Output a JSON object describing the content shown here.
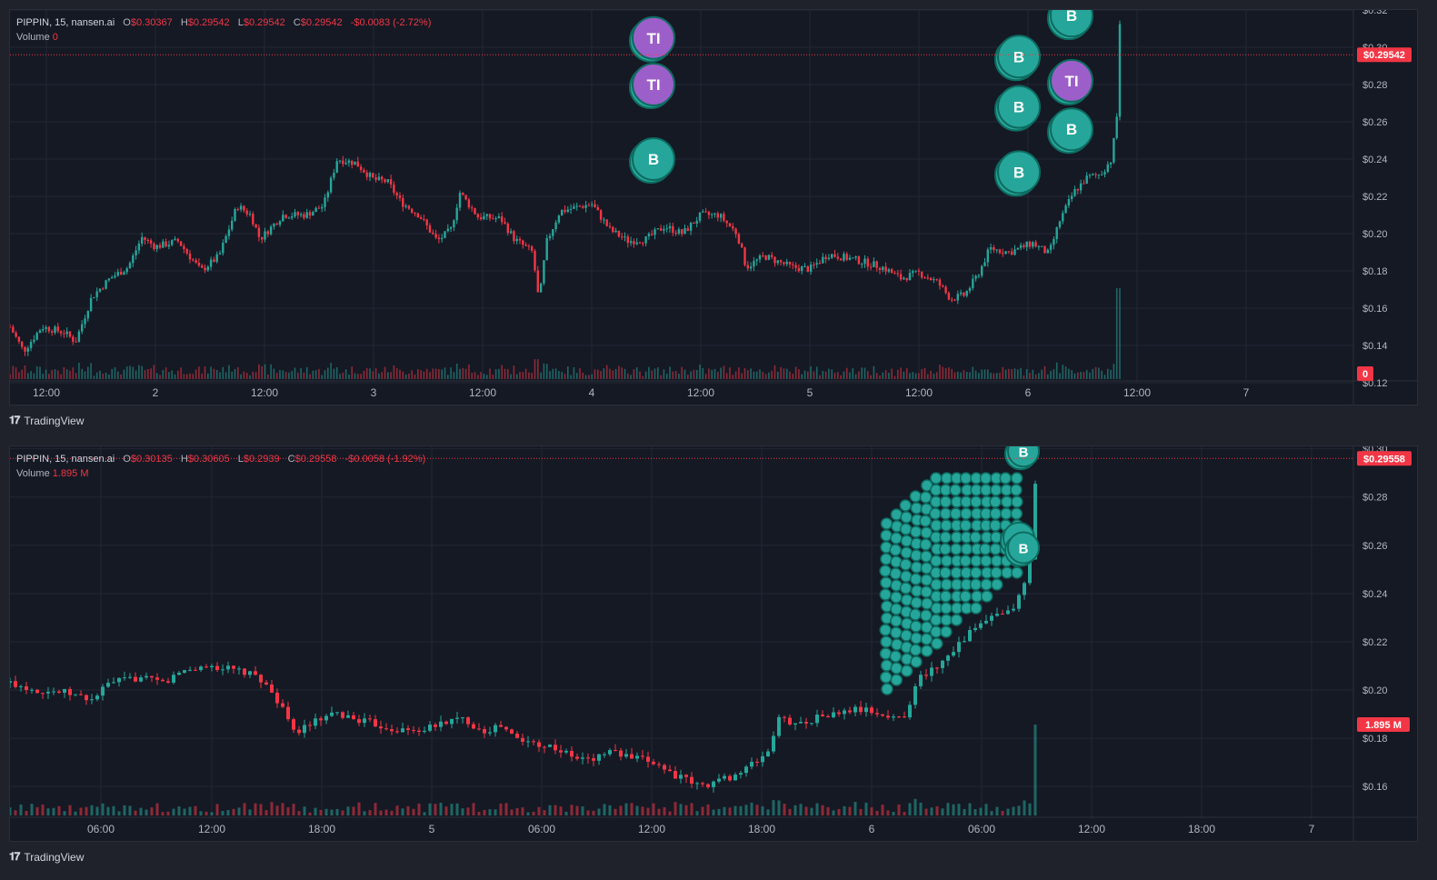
{
  "panels": [
    {
      "legend": {
        "symbol": "PIPPIN, 15, nansen.ai",
        "open_label": "O",
        "open": "$0.30367",
        "high_label": "H",
        "high": "$0.29542",
        "low_label": "L",
        "low": "$0.29542",
        "close_label": "C",
        "close": "$0.29542",
        "change": "-$0.0083 (-2.72%)",
        "volume_label": "Volume",
        "volume": "0"
      },
      "price_tag": "$0.29542",
      "volume_tag": "0",
      "brand": "TradingView"
    },
    {
      "legend": {
        "symbol": "PIPPIN, 15, nansen.ai",
        "open_label": "O",
        "open": "$0.30135",
        "high_label": "H",
        "high": "$0.30605",
        "low_label": "L",
        "low": "$0.2939",
        "close_label": "C",
        "close": "$0.29558",
        "change": "-$0.0058 (-1.92%)",
        "volume_label": "Volume",
        "volume": "1.895 M"
      },
      "price_tag": "$0.29558",
      "volume_tag": "1.895 M",
      "brand": "TradingView"
    }
  ],
  "colors": {
    "up": "#26a69a",
    "down": "#f23645",
    "buy_marker": "#26a69a",
    "ti_marker": "#9c5fc9",
    "background": "#151924",
    "grid": "#232734"
  },
  "chart_data": [
    {
      "type": "candlestick",
      "title": "PIPPIN, 15, nansen.ai",
      "y_ticks": [
        "$0.32",
        "$0.30",
        "$0.28",
        "$0.26",
        "$0.24",
        "$0.22",
        "$0.20",
        "$0.18",
        "$0.16",
        "$0.14",
        "$0.12"
      ],
      "x_ticks": [
        "12:00",
        "2",
        "12:00",
        "3",
        "12:00",
        "4",
        "12:00",
        "5",
        "12:00",
        "6",
        "12:00",
        "7"
      ],
      "ylim": [
        0.12,
        0.32
      ],
      "path": [
        [
          0,
          0.15
        ],
        [
          15,
          0.137
        ],
        [
          35,
          0.15
        ],
        [
          60,
          0.147
        ],
        [
          72,
          0.142
        ],
        [
          90,
          0.166
        ],
        [
          110,
          0.176
        ],
        [
          130,
          0.182
        ],
        [
          145,
          0.198
        ],
        [
          160,
          0.193
        ],
        [
          185,
          0.196
        ],
        [
          210,
          0.18
        ],
        [
          230,
          0.188
        ],
        [
          250,
          0.215
        ],
        [
          265,
          0.21
        ],
        [
          275,
          0.197
        ],
        [
          300,
          0.21
        ],
        [
          325,
          0.21
        ],
        [
          345,
          0.215
        ],
        [
          360,
          0.24
        ],
        [
          380,
          0.238
        ],
        [
          400,
          0.229
        ],
        [
          415,
          0.228
        ],
        [
          430,
          0.217
        ],
        [
          450,
          0.21
        ],
        [
          470,
          0.196
        ],
        [
          485,
          0.202
        ],
        [
          495,
          0.222
        ],
        [
          515,
          0.209
        ],
        [
          540,
          0.208
        ],
        [
          555,
          0.197
        ],
        [
          575,
          0.19
        ],
        [
          582,
          0.163
        ],
        [
          590,
          0.195
        ],
        [
          605,
          0.212
        ],
        [
          640,
          0.216
        ],
        [
          660,
          0.202
        ],
        [
          680,
          0.196
        ],
        [
          700,
          0.197
        ],
        [
          720,
          0.204
        ],
        [
          740,
          0.2
        ],
        [
          760,
          0.21
        ],
        [
          780,
          0.21
        ],
        [
          800,
          0.2
        ],
        [
          810,
          0.182
        ],
        [
          830,
          0.188
        ],
        [
          860,
          0.182
        ],
        [
          880,
          0.181
        ],
        [
          900,
          0.189
        ],
        [
          930,
          0.186
        ],
        [
          960,
          0.182
        ],
        [
          980,
          0.176
        ],
        [
          1000,
          0.179
        ],
        [
          1020,
          0.174
        ],
        [
          1035,
          0.165
        ],
        [
          1050,
          0.167
        ],
        [
          1065,
          0.178
        ],
        [
          1078,
          0.192
        ],
        [
          1100,
          0.19
        ],
        [
          1125,
          0.195
        ],
        [
          1143,
          0.189
        ],
        [
          1155,
          0.207
        ],
        [
          1170,
          0.222
        ],
        [
          1185,
          0.23
        ],
        [
          1200,
          0.232
        ],
        [
          1212,
          0.24
        ],
        [
          1218,
          0.264
        ],
        [
          1220,
          0.33
        ],
        [
          1222,
          0.296
        ]
      ],
      "markers": [
        {
          "label": "TI",
          "type": "ti",
          "x": 708,
          "price": 0.305
        },
        {
          "label": "TI",
          "type": "ti",
          "x": 708,
          "price": 0.28
        },
        {
          "label": "B",
          "type": "buy",
          "x": 708,
          "price": 0.24
        },
        {
          "label": "B",
          "type": "buy",
          "x": 1110,
          "price": 0.295
        },
        {
          "label": "B",
          "type": "buy",
          "x": 1110,
          "price": 0.268
        },
        {
          "label": "B",
          "type": "buy",
          "x": 1110,
          "price": 0.233
        },
        {
          "label": "B",
          "type": "buy",
          "x": 1168,
          "price": 0.317
        },
        {
          "label": "TI",
          "type": "ti",
          "x": 1168,
          "price": 0.282
        },
        {
          "label": "B",
          "type": "buy",
          "x": 1168,
          "price": 0.256
        }
      ]
    },
    {
      "type": "candlestick",
      "title": "PIPPIN, 15, nansen.ai",
      "y_ticks": [
        "$0.30",
        "$0.28",
        "$0.26",
        "$0.24",
        "$0.22",
        "$0.20",
        "$0.18",
        "$0.16"
      ],
      "x_ticks": [
        "06:00",
        "12:00",
        "18:00",
        "5",
        "06:00",
        "12:00",
        "18:00",
        "6",
        "06:00",
        "12:00",
        "18:00",
        "7"
      ],
      "ylim": [
        0.148,
        0.301
      ],
      "path": [
        [
          0,
          0.203
        ],
        [
          30,
          0.2
        ],
        [
          60,
          0.199
        ],
        [
          90,
          0.196
        ],
        [
          110,
          0.203
        ],
        [
          140,
          0.205
        ],
        [
          170,
          0.203
        ],
        [
          190,
          0.208
        ],
        [
          220,
          0.21
        ],
        [
          250,
          0.208
        ],
        [
          275,
          0.205
        ],
        [
          300,
          0.193
        ],
        [
          310,
          0.182
        ],
        [
          330,
          0.186
        ],
        [
          360,
          0.19
        ],
        [
          380,
          0.188
        ],
        [
          400,
          0.186
        ],
        [
          420,
          0.184
        ],
        [
          440,
          0.183
        ],
        [
          460,
          0.184
        ],
        [
          480,
          0.187
        ],
        [
          500,
          0.188
        ],
        [
          520,
          0.183
        ],
        [
          540,
          0.185
        ],
        [
          560,
          0.179
        ],
        [
          580,
          0.178
        ],
        [
          600,
          0.176
        ],
        [
          620,
          0.172
        ],
        [
          640,
          0.171
        ],
        [
          660,
          0.175
        ],
        [
          680,
          0.172
        ],
        [
          710,
          0.17
        ],
        [
          730,
          0.165
        ],
        [
          760,
          0.16
        ],
        [
          775,
          0.162
        ],
        [
          800,
          0.165
        ],
        [
          820,
          0.17
        ],
        [
          835,
          0.175
        ],
        [
          845,
          0.188
        ],
        [
          870,
          0.186
        ],
        [
          890,
          0.189
        ],
        [
          910,
          0.19
        ],
        [
          930,
          0.192
        ],
        [
          950,
          0.191
        ],
        [
          970,
          0.188
        ],
        [
          985,
          0.19
        ],
        [
          1000,
          0.205
        ],
        [
          1020,
          0.21
        ],
        [
          1040,
          0.218
        ],
        [
          1060,
          0.225
        ],
        [
          1080,
          0.23
        ],
        [
          1100,
          0.232
        ],
        [
          1115,
          0.242
        ],
        [
          1125,
          0.26
        ],
        [
          1130,
          0.302
        ],
        [
          1133,
          0.296
        ]
      ],
      "markers": [
        {
          "label": "B",
          "type": "buy",
          "x": 1115,
          "price": 0.299
        },
        {
          "label": "B",
          "type": "buy",
          "x": 1110,
          "price": 0.263
        },
        {
          "label": "B",
          "type": "buy",
          "x": 1115,
          "price": 0.259
        }
      ]
    }
  ]
}
